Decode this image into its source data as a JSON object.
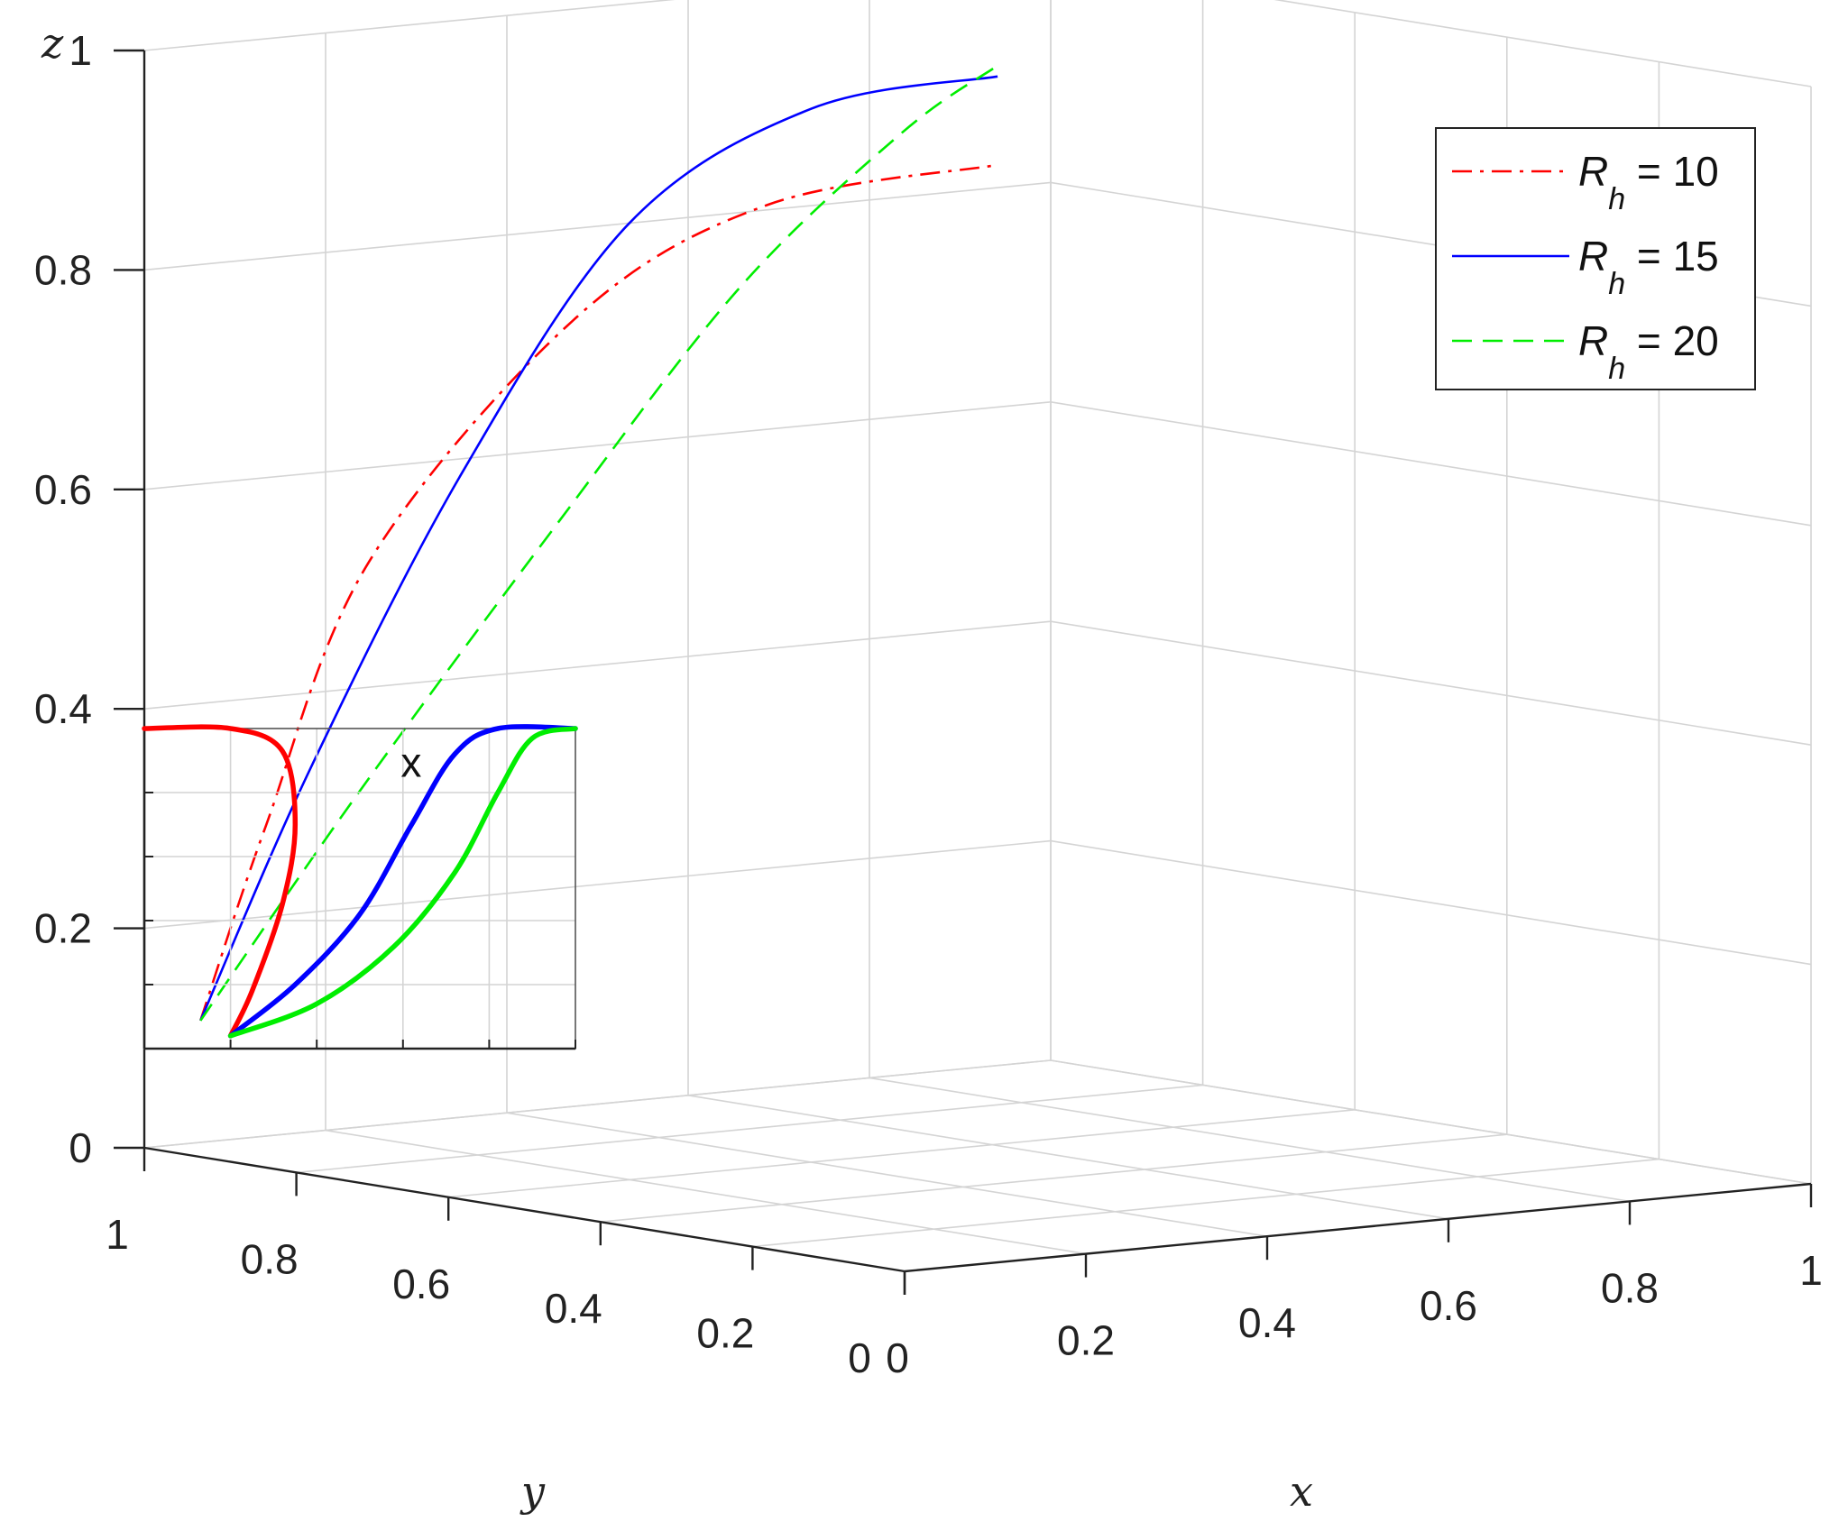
{
  "chart_data": {
    "type": "line3d",
    "title": "",
    "axes": {
      "x": {
        "label": "x",
        "range": [
          0,
          1
        ],
        "ticks": [
          "0",
          "0.2",
          "0.4",
          "0.6",
          "0.8",
          "1"
        ]
      },
      "y": {
        "label": "y",
        "range": [
          0,
          1
        ],
        "ticks": [
          "0",
          "0.2",
          "0.4",
          "0.6",
          "0.8",
          "1"
        ]
      },
      "z": {
        "label": "z",
        "range": [
          0,
          1
        ],
        "ticks": [
          "0",
          "0.2",
          "0.4",
          "0.6",
          "0.8",
          "1"
        ]
      }
    },
    "grid": true,
    "legend": {
      "position": "top-right",
      "entries": [
        {
          "base": "R",
          "sub": "h",
          "suffix": " = 10",
          "color": "#ff0000",
          "style": "dash-dot"
        },
        {
          "base": "R",
          "sub": "h",
          "suffix": " = 15",
          "color": "#0000ff",
          "style": "solid"
        },
        {
          "base": "R",
          "sub": "h",
          "suffix": " = 20",
          "color": "#00ee00",
          "style": "dashed"
        }
      ]
    },
    "series": [
      {
        "name": "Rh = 10",
        "color": "#ff0000",
        "points": [
          [
            0.02,
            0.95,
            0.12
          ],
          [
            0.05,
            0.9,
            0.3
          ],
          [
            0.08,
            0.8,
            0.55
          ],
          [
            0.1,
            0.55,
            0.8
          ],
          [
            0.1,
            0.3,
            0.93
          ],
          [
            0.1,
            0.0,
            1.0
          ]
        ]
      },
      {
        "name": "Rh = 15",
        "color": "#0000ff",
        "points": [
          [
            0.02,
            0.95,
            0.12
          ],
          [
            0.1,
            0.9,
            0.35
          ],
          [
            0.2,
            0.82,
            0.62
          ],
          [
            0.3,
            0.72,
            0.85
          ],
          [
            0.4,
            0.6,
            0.96
          ],
          [
            0.48,
            0.45,
            1.0
          ]
        ]
      },
      {
        "name": "Rh = 20",
        "color": "#00ee00",
        "points": [
          [
            0.02,
            0.95,
            0.12
          ],
          [
            0.15,
            0.9,
            0.32
          ],
          [
            0.3,
            0.82,
            0.56
          ],
          [
            0.42,
            0.72,
            0.78
          ],
          [
            0.5,
            0.6,
            0.93
          ],
          [
            0.52,
            0.5,
            1.0
          ]
        ]
      }
    ],
    "inset": {
      "label": "x",
      "series": [
        {
          "name": "Rh = 10",
          "color": "#ff0000",
          "points": [
            [
              0.2,
              0.04
            ],
            [
              0.25,
              0.18
            ],
            [
              0.32,
              0.45
            ],
            [
              0.35,
              0.7
            ],
            [
              0.32,
              0.93
            ],
            [
              0.2,
              1.0
            ],
            [
              0.0,
              1.0
            ]
          ]
        },
        {
          "name": "Rh = 15",
          "color": "#0000ff",
          "points": [
            [
              0.2,
              0.04
            ],
            [
              0.35,
              0.2
            ],
            [
              0.5,
              0.42
            ],
            [
              0.62,
              0.7
            ],
            [
              0.72,
              0.92
            ],
            [
              0.82,
              1.0
            ],
            [
              1.0,
              1.0
            ]
          ]
        },
        {
          "name": "Rh = 20",
          "color": "#00ee00",
          "points": [
            [
              0.2,
              0.04
            ],
            [
              0.4,
              0.14
            ],
            [
              0.58,
              0.32
            ],
            [
              0.72,
              0.55
            ],
            [
              0.82,
              0.8
            ],
            [
              0.9,
              0.97
            ],
            [
              1.0,
              1.0
            ]
          ]
        }
      ]
    }
  }
}
